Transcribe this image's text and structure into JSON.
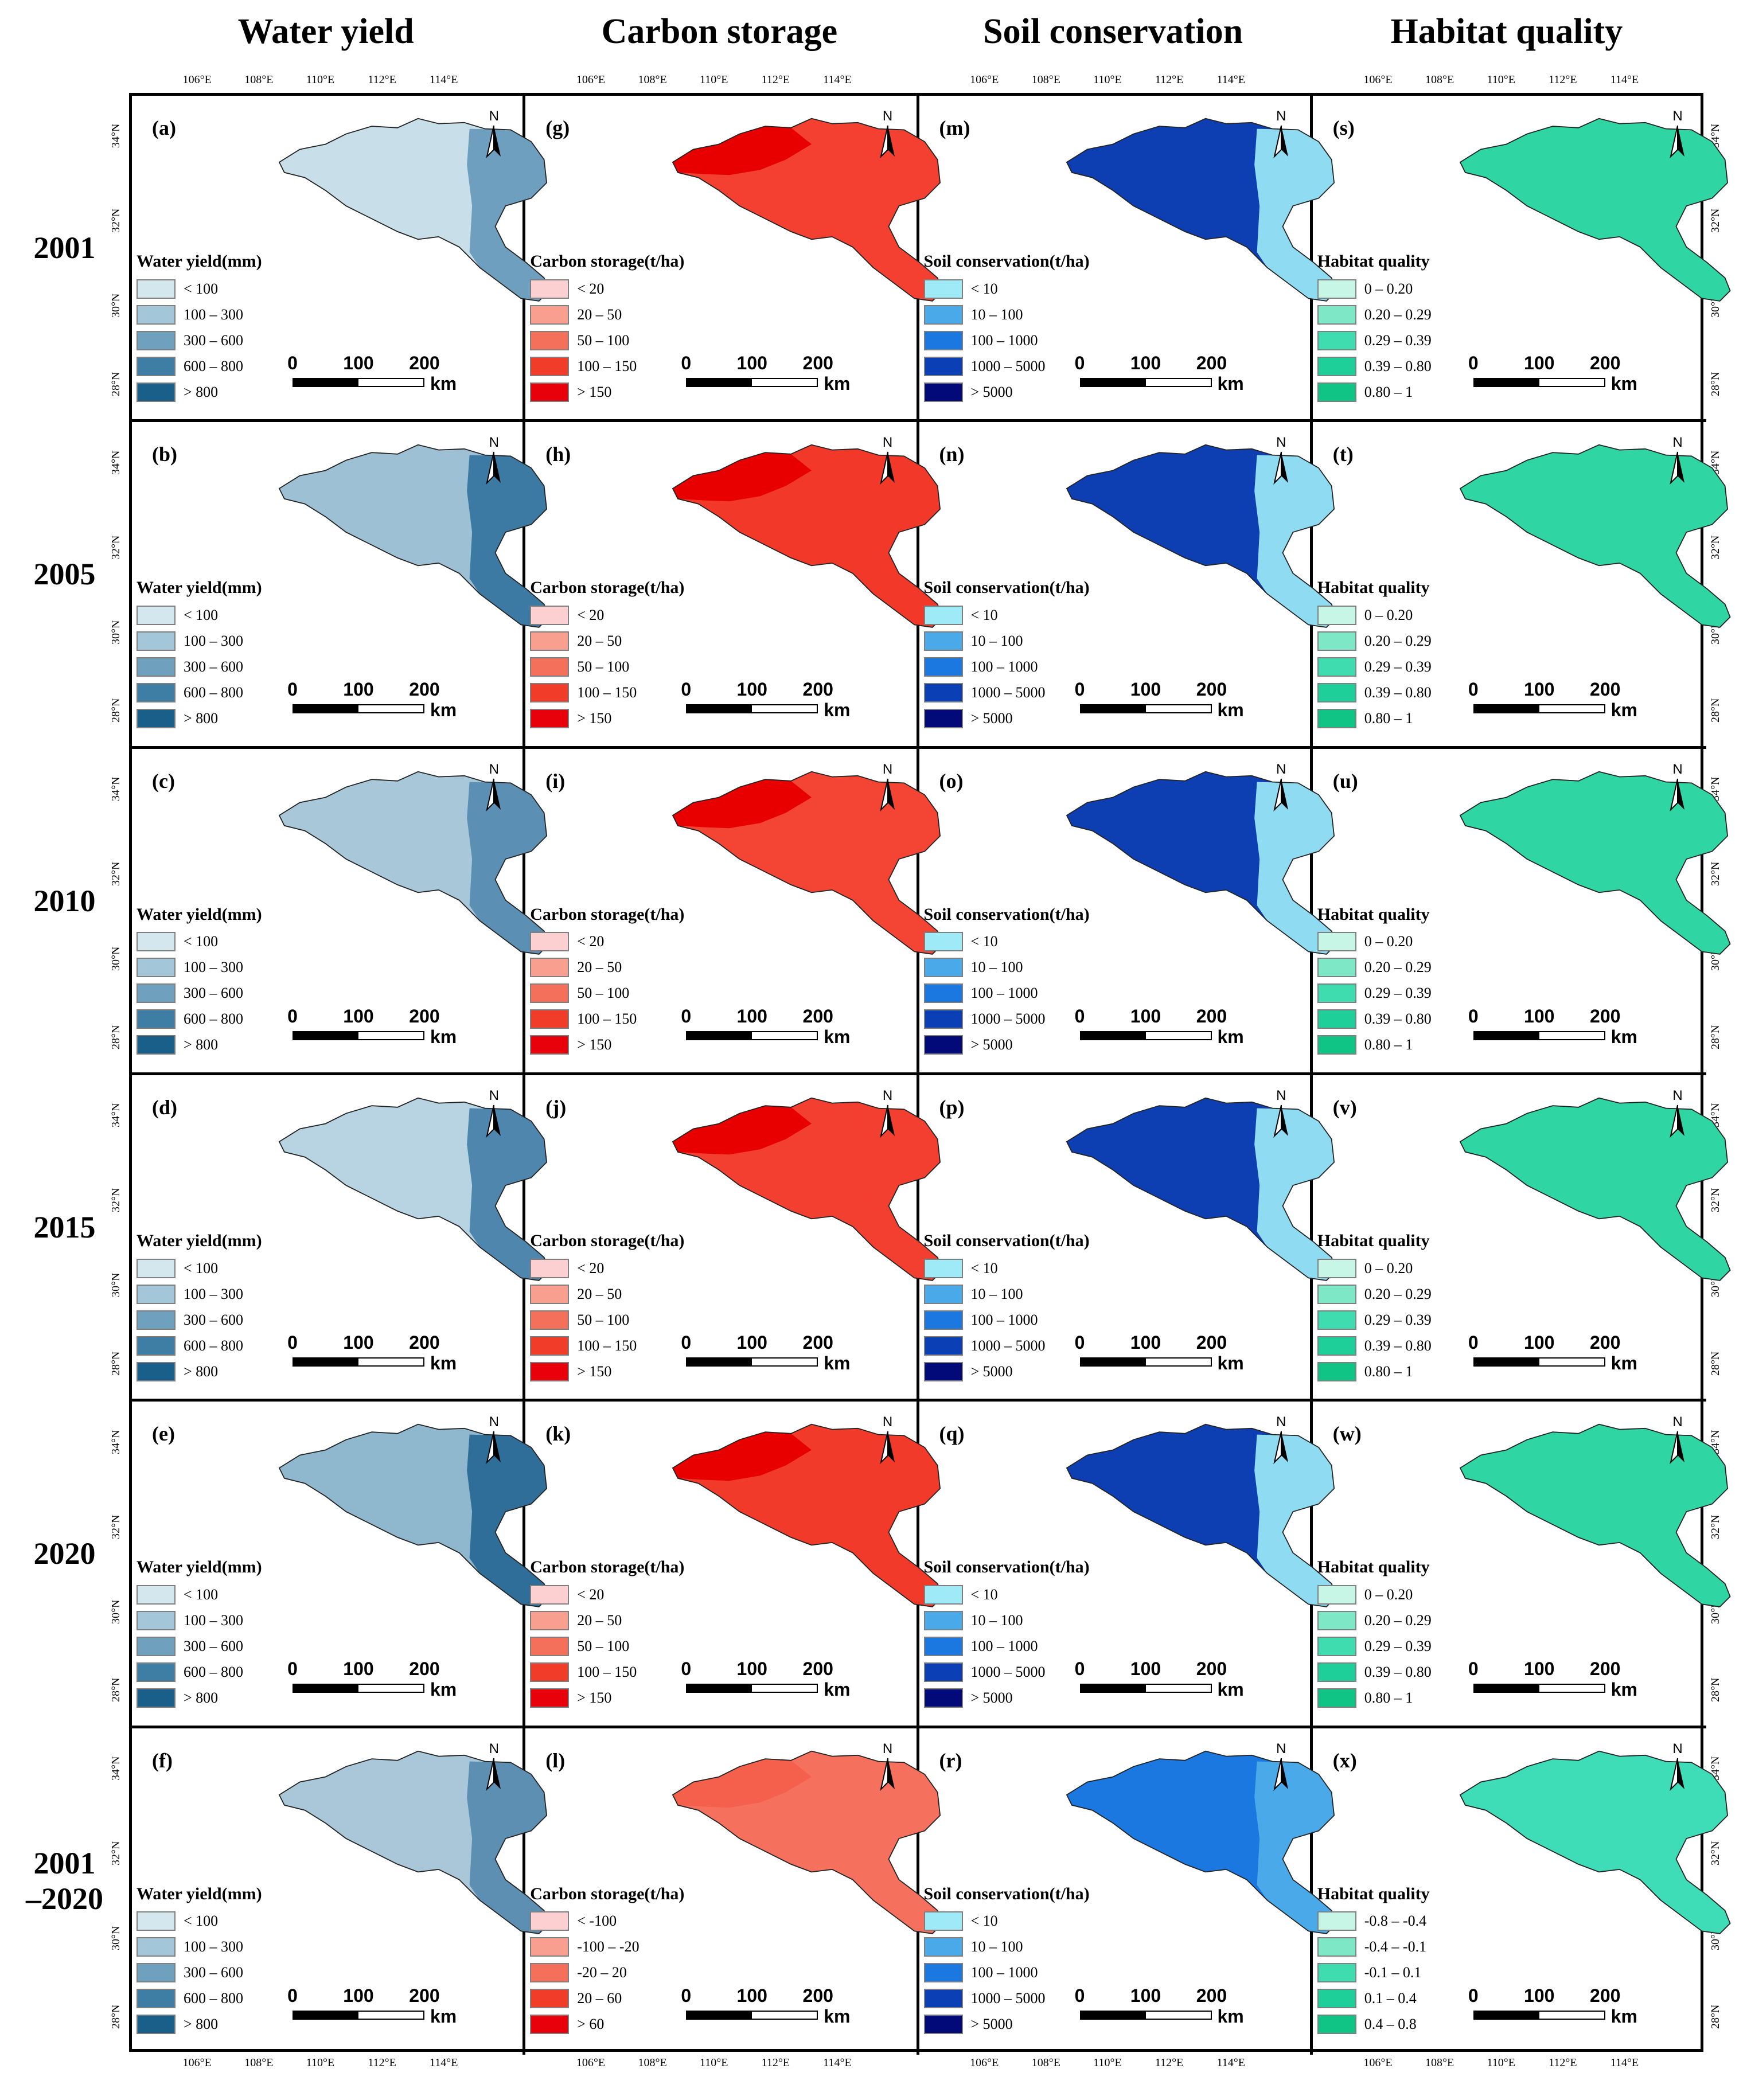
{
  "columns": [
    {
      "title": "Water yield",
      "legend_title": "Water yield(mm)",
      "legend": [
        "< 100",
        "100 – 300",
        "300 – 600",
        "600 – 800",
        "> 800"
      ],
      "legend_diff": [
        "< 100",
        "100 – 300",
        "300 – 600",
        "600 – 800",
        "> 800"
      ],
      "colors": [
        "#d5e7ee",
        "#a3c6d8",
        "#6fa0bd",
        "#3f7ea4",
        "#1a5e8a"
      ],
      "panel_letters": [
        "(a)",
        "(b)",
        "(c)",
        "(d)",
        "(e)",
        "(f)"
      ]
    },
    {
      "title": "Carbon storage",
      "legend_title": "Carbon storage(t/ha)",
      "legend": [
        "< 20",
        "20 – 50",
        "50 – 100",
        "100 – 150",
        "> 150"
      ],
      "legend_diff": [
        "< -100",
        "-100 – -20",
        "-20 – 20",
        "20 – 60",
        "> 60"
      ],
      "colors": [
        "#fcd0d0",
        "#f99f90",
        "#f5705a",
        "#f03c28",
        "#e8000a"
      ],
      "panel_letters": [
        "(g)",
        "(h)",
        "(i)",
        "(j)",
        "(k)",
        "(l)"
      ]
    },
    {
      "title": "Soil conservation",
      "legend_title": "Soil conservation(t/ha)",
      "legend": [
        "< 10",
        "10 – 100",
        "100 – 1000",
        "1000 – 5000",
        "> 5000"
      ],
      "legend_diff": [
        "< 10",
        "10 – 100",
        "100 – 1000",
        "1000 – 5000",
        "> 5000"
      ],
      "colors": [
        "#9eeaf6",
        "#4aa9e8",
        "#1a78e0",
        "#0a3fb5",
        "#020a7a"
      ],
      "panel_letters": [
        "(m)",
        "(n)",
        "(o)",
        "(p)",
        "(q)",
        "(r)"
      ]
    },
    {
      "title": "Habitat quality",
      "legend_title": "Habitat quality",
      "legend": [
        "0 – 0.20",
        "0.20 – 0.29",
        "0.29 – 0.39",
        "0.39 – 0.80",
        "0.80 – 1"
      ],
      "legend_diff": [
        "-0.8 – -0.4",
        "-0.4 – -0.1",
        "-0.1 – 0.1",
        "0.1 – 0.4",
        "0.4 – 0.8"
      ],
      "colors": [
        "#c7f5e6",
        "#7ee8c6",
        "#3fdcb0",
        "#1ecf9a",
        "#0fc485"
      ],
      "panel_letters": [
        "(s)",
        "(t)",
        "(u)",
        "(v)",
        "(w)",
        "(x)"
      ]
    }
  ],
  "rows": [
    "2001",
    "2005",
    "2010",
    "2015",
    "2020",
    "2001\n–2020"
  ],
  "lon_ticks": [
    "106°E",
    "108°E",
    "110°E",
    "112°E",
    "114°E"
  ],
  "lat_ticks": [
    "34°N",
    "32°N",
    "30°N",
    "28°N"
  ],
  "north_label": "N",
  "scale": {
    "labels": [
      "0",
      "100",
      "200"
    ],
    "unit": "km"
  },
  "map_fill": {
    "water": [
      "#c8dfe9",
      "#9ec0d4",
      "#a8c8da",
      "#b8d3e1",
      "#8fb7cd",
      "#a9c7d8"
    ],
    "water_dark": [
      "#6f9fbf",
      "#3d7aa3",
      "#5b8fb3",
      "#4e86ad",
      "#2f6e98",
      "#5d8fb2"
    ],
    "carbon": [
      "#f34030",
      "#f23828",
      "#f34434",
      "#f33f2f",
      "#f23a2a",
      "#f6705e"
    ],
    "carbon_dark": [
      "#e80000",
      "#e80000",
      "#e80000",
      "#e80000",
      "#e80000",
      "#f4604c"
    ],
    "soil": [
      "#0d3fb2",
      "#0d3fb2",
      "#0d3fb2",
      "#0d3fb2",
      "#0d3fb2",
      "#1a78e0"
    ],
    "soil_light": [
      "#8fdcf2",
      "#8fdcf2",
      "#8fdcf2",
      "#8fdcf2",
      "#8fdcf2",
      "#4aa9e8"
    ],
    "habitat": [
      "#2fd6a4",
      "#2fd6a4",
      "#2fd6a4",
      "#2fd6a4",
      "#2fd6a4",
      "#3fdcb8"
    ]
  }
}
